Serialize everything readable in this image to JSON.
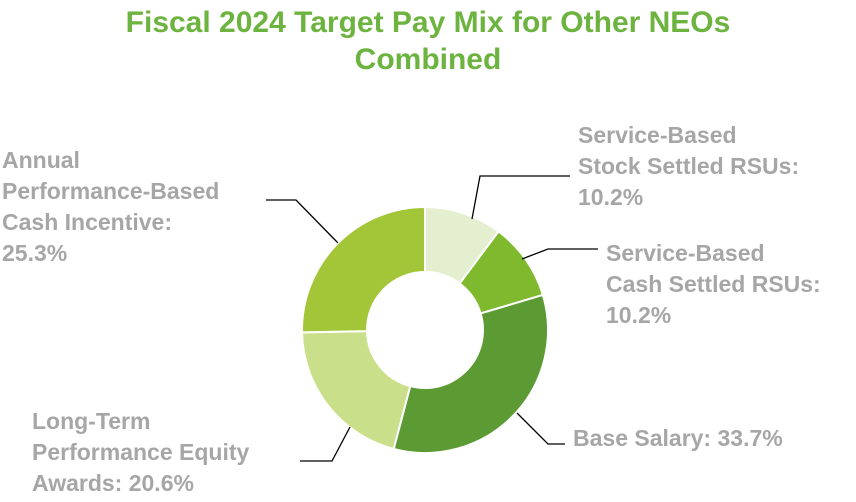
{
  "chart_data": {
    "type": "pie",
    "variant": "donut",
    "title": [
      "Fiscal 2024 Target Pay Mix for Other NEOs",
      "Combined"
    ],
    "slices": [
      {
        "label": [
          "Service-Based",
          "Stock Settled RSUs:",
          "10.2%"
        ],
        "value": 10.2,
        "color": "#e4efcf"
      },
      {
        "label": [
          "Service-Based",
          "Cash Settled RSUs:",
          "10.2%"
        ],
        "value": 10.2,
        "color": "#7fba2e"
      },
      {
        "label": [
          "Base Salary: 33.7%"
        ],
        "value": 33.7,
        "color": "#5c9b33"
      },
      {
        "label": [
          "Long-Term",
          "Performance Equity",
          "Awards: 20.6%"
        ],
        "value": 20.6,
        "color": "#c9df8a"
      },
      {
        "label": [
          "Annual",
          "Performance-Based",
          "Cash Incentive:",
          "25.3%"
        ],
        "value": 25.3,
        "color": "#a3c639"
      }
    ],
    "title_color": "#6db33f",
    "label_color": "#a6a6a6"
  }
}
